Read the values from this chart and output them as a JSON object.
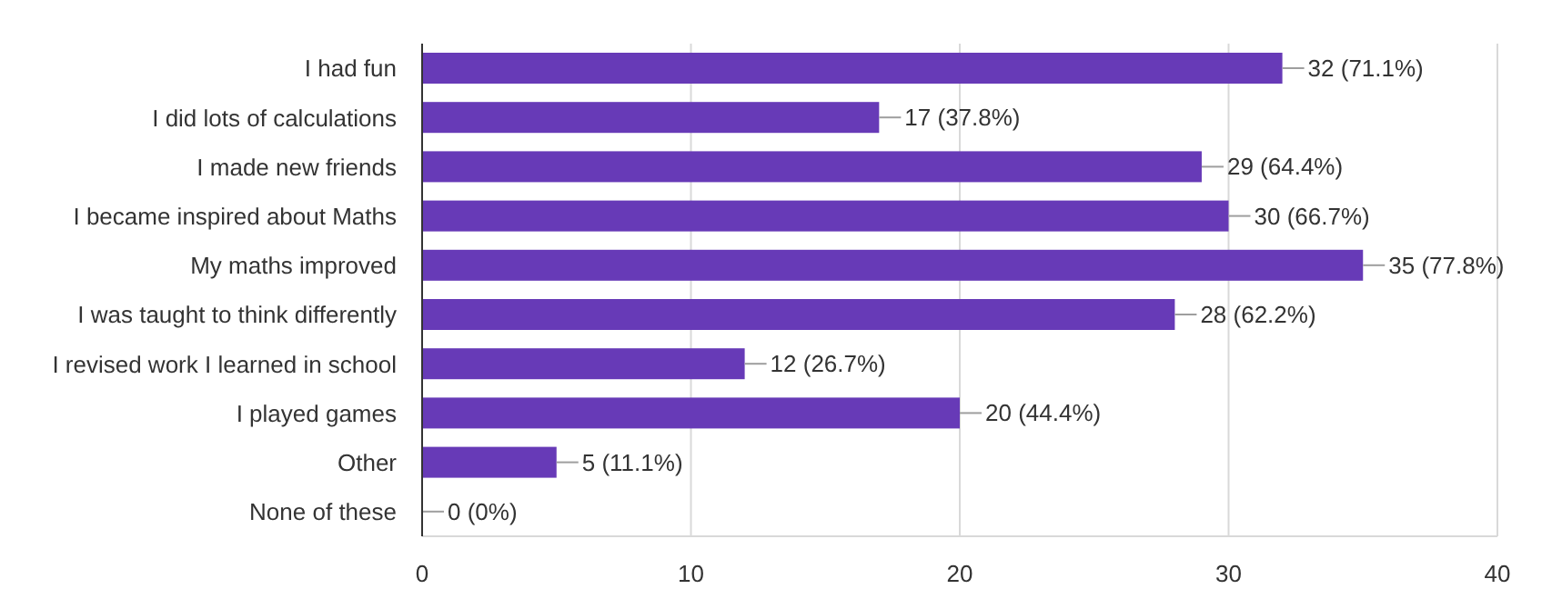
{
  "chart_data": {
    "type": "bar",
    "orientation": "horizontal",
    "categories": [
      "I had fun",
      "I did lots of calculations",
      "I made new friends",
      "I became inspired about Maths",
      "My maths improved",
      "I was taught to think differently",
      "I revised work I learned in school",
      "I played games",
      "Other",
      "None of these"
    ],
    "values": [
      32,
      17,
      29,
      30,
      35,
      28,
      12,
      20,
      5,
      0
    ],
    "value_labels": [
      "32 (71.1%)",
      "17 (37.8%)",
      "29 (64.4%)",
      "30 (66.7%)",
      "35 (77.8%)",
      "28 (62.2%)",
      "12 (26.7%)",
      "20 (44.4%)",
      "5 (11.1%)",
      "0 (0%)"
    ],
    "color": "#673ab7",
    "xlim": [
      0,
      40
    ],
    "xticks": [
      0,
      10,
      20,
      30,
      40
    ],
    "grid": "x"
  }
}
